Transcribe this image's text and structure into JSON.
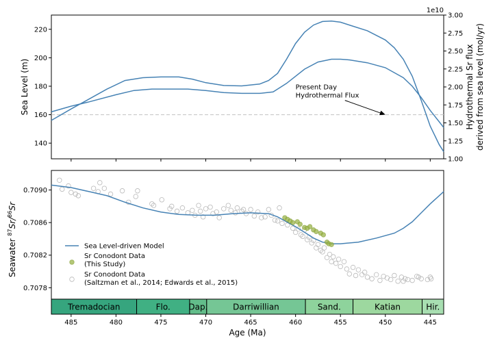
{
  "chart_data": [
    {
      "panel": "top",
      "type": "line",
      "x_axis": {
        "label": "Age (Ma)",
        "range": [
          487.2,
          443.5
        ],
        "reversed": true,
        "ticks": [
          485,
          480,
          475,
          470,
          465,
          460,
          455,
          450,
          445
        ],
        "ticklabels_shown": false
      },
      "y_axis_left": {
        "label": "Sea Level (m)",
        "range": [
          129,
          230
        ],
        "ticks": [
          140,
          160,
          180,
          200,
          220
        ]
      },
      "y_axis_right": {
        "label_line1": "Hydrothermal Sr flux",
        "label_line2": "derived from sea level (mol/yr)",
        "multiplier": "1e10",
        "range": [
          1.0,
          3.0
        ],
        "ticks": [
          1.0,
          1.25,
          1.5,
          1.75,
          2.0,
          2.25,
          2.5,
          2.75,
          3.0
        ],
        "ticklabels": [
          "1.00",
          "1.25",
          "1.50",
          "1.75",
          "2.00",
          "2.25",
          "2.50",
          "2.75",
          "3.00"
        ]
      },
      "reference_line": {
        "y": 160,
        "style": "dashed",
        "color": "#c8c8c8"
      },
      "annotation": {
        "text_line1": "Present Day",
        "text_line2": "Hydrothermal Flux",
        "text_x": 460,
        "text_y": 172,
        "arrow_to_x": 450,
        "arrow_to_y": 160
      },
      "series": [
        {
          "color": "#4682b4",
          "x": [
            487.2,
            485,
            483,
            480,
            478,
            476,
            474,
            472,
            470,
            468,
            466,
            464,
            462.5,
            461,
            459,
            457.5,
            456,
            455,
            454,
            452,
            450,
            448,
            447,
            446,
            445,
            444,
            443.5
          ],
          "y": [
            162,
            166,
            169,
            174,
            177,
            178,
            178,
            178,
            177,
            175.5,
            175,
            175,
            176,
            182,
            192,
            197,
            199,
            199,
            198.5,
            196.5,
            193,
            186,
            180,
            172,
            163,
            155,
            151
          ]
        },
        {
          "color": "#4682b4",
          "x": [
            487.2,
            485,
            483,
            481,
            479,
            477,
            475,
            473,
            471.5,
            470,
            468,
            466,
            464,
            463,
            462,
            461,
            460,
            459,
            458,
            457,
            456,
            455,
            454,
            452,
            450,
            449,
            448,
            447,
            446,
            445,
            444,
            443.5
          ],
          "y": [
            156,
            164,
            171,
            178,
            184,
            186,
            186.5,
            186.5,
            185,
            182.5,
            180.5,
            180.2,
            181.5,
            184,
            189,
            199,
            210,
            218,
            223,
            225.5,
            225.8,
            225,
            223,
            219,
            212.5,
            207,
            199,
            187,
            170,
            152,
            139,
            134
          ]
        }
      ]
    },
    {
      "panel": "bottom",
      "type": "scatter",
      "x_axis": {
        "label": "Age (Ma)",
        "range": [
          487.2,
          443.5
        ],
        "reversed": true,
        "ticks": [
          485,
          480,
          475,
          470,
          465,
          460,
          455,
          450,
          445
        ],
        "ticklabels": [
          "485",
          "480",
          "475",
          "470",
          "465",
          "460",
          "455",
          "450",
          "445"
        ]
      },
      "y_axis": {
        "label_prefix": "Seawater ",
        "label_sup1": "87",
        "label_mid": "Sr/",
        "label_sup2": "86",
        "label_suffix": "Sr",
        "range": [
          0.70766,
          0.70924
        ],
        "ticks": [
          0.7078,
          0.7082,
          0.7086,
          0.709
        ],
        "ticklabels": [
          "0.7078",
          "0.7082",
          "0.7086",
          "0.7090"
        ]
      },
      "legend": {
        "placement": "center-left",
        "entries": [
          {
            "kind": "line",
            "label_line1": "Sea Level-driven Model",
            "label_line2": ""
          },
          {
            "kind": "filled-circle",
            "label_line1": "Sr Conodont Data",
            "label_line2": "(This Study)"
          },
          {
            "kind": "open-circle",
            "label_line1": "Sr Conodont Data",
            "label_line2": "(Saltzman et al., 2014; Edwards et al., 2015)"
          }
        ]
      },
      "series": [
        {
          "name": "Sea Level-driven Model",
          "kind": "line",
          "color": "#4682b4",
          "x": [
            487.2,
            485,
            483,
            481,
            479,
            477,
            475,
            473,
            471,
            469,
            467,
            465,
            463,
            462,
            461,
            460,
            459,
            458,
            457,
            456,
            455,
            453,
            451,
            449,
            448,
            447,
            446,
            445,
            444,
            443.5
          ],
          "y": [
            0.70906,
            0.70903,
            0.70898,
            0.70893,
            0.70885,
            0.70878,
            0.70873,
            0.7087,
            0.70869,
            0.70869,
            0.70871,
            0.70872,
            0.70871,
            0.70867,
            0.70861,
            0.70855,
            0.70848,
            0.70841,
            0.70836,
            0.70834,
            0.70834,
            0.70836,
            0.70841,
            0.70847,
            0.70853,
            0.70861,
            0.70872,
            0.70883,
            0.70893,
            0.70898
          ]
        },
        {
          "name": "Sr Conodont Data (This Study)",
          "kind": "filled",
          "color": "#7d9a2a",
          "x": [
            461.2,
            460.9,
            460.6,
            460.3,
            459.8,
            459.5,
            459.0,
            458.7,
            458.4,
            458.0,
            457.7,
            457.2,
            456.9,
            456.5,
            456.3,
            456.0
          ],
          "y": [
            0.70866,
            0.70864,
            0.70862,
            0.7086,
            0.70861,
            0.70858,
            0.70854,
            0.70853,
            0.70855,
            0.70851,
            0.70849,
            0.70847,
            0.70845,
            0.70836,
            0.70834,
            0.70833
          ]
        },
        {
          "name": "Sr Conodont Data (Saltzman et al., 2014; Edwards et al., 2015)",
          "kind": "open",
          "color": "#b9b9b9",
          "x": [
            486.3,
            486.0,
            485.3,
            485.0,
            484.5,
            484.2,
            482.5,
            482.0,
            481.8,
            481.3,
            480.6,
            479.3,
            478.6,
            477.8,
            477.6,
            476.0,
            475.8,
            474.9,
            474.0,
            473.8,
            473.2,
            472.6,
            472.0,
            471.5,
            471.2,
            470.8,
            470.6,
            470.3,
            470.0,
            469.5,
            469.2,
            468.8,
            468.5,
            468.0,
            467.5,
            467.2,
            466.7,
            466.5,
            466.0,
            465.8,
            465.5,
            465.0,
            464.6,
            464.2,
            463.8,
            463.4,
            463.0,
            462.7,
            462.3,
            462.0,
            461.8,
            461.5,
            460.9,
            460.6,
            460.3,
            460.0,
            459.7,
            459.4,
            459.2,
            459.0,
            458.7,
            458.5,
            458.2,
            458.0,
            457.7,
            457.5,
            457.2,
            457.0,
            456.8,
            456.5,
            456.2,
            456.0,
            455.8,
            455.5,
            455.2,
            455.0,
            454.6,
            454.3,
            454.0,
            453.6,
            453.3,
            453.0,
            452.6,
            452.3,
            452.0,
            451.5,
            451.0,
            450.6,
            450.2,
            449.8,
            449.4,
            449.0,
            448.6,
            448.2,
            447.8,
            447.5,
            446.5,
            446.3,
            446.0,
            445.0,
            444.9,
            445.3,
            447.0,
            448.0
          ],
          "y": [
            0.70912,
            0.70901,
            0.70905,
            0.70897,
            0.70895,
            0.70893,
            0.70902,
            0.70898,
            0.70909,
            0.70902,
            0.70895,
            0.70899,
            0.70885,
            0.70892,
            0.70899,
            0.70883,
            0.70881,
            0.70888,
            0.70877,
            0.7088,
            0.70874,
            0.70878,
            0.70872,
            0.70875,
            0.70869,
            0.70881,
            0.70874,
            0.70867,
            0.70877,
            0.70879,
            0.70871,
            0.70873,
            0.70866,
            0.70877,
            0.70881,
            0.70875,
            0.70872,
            0.70878,
            0.70874,
            0.70876,
            0.70871,
            0.70876,
            0.70868,
            0.70873,
            0.70866,
            0.70867,
            0.70876,
            0.70869,
            0.70863,
            0.70862,
            0.70878,
            0.70859,
            0.70857,
            0.70861,
            0.70853,
            0.70848,
            0.70852,
            0.70845,
            0.70843,
            0.70851,
            0.70839,
            0.70842,
            0.70835,
            0.70838,
            0.70829,
            0.70833,
            0.70826,
            0.70824,
            0.70829,
            0.70817,
            0.70821,
            0.70812,
            0.70818,
            0.7081,
            0.70815,
            0.70806,
            0.70812,
            0.70803,
            0.70797,
            0.70805,
            0.70795,
            0.70802,
            0.70796,
            0.70799,
            0.70793,
            0.70791,
            0.70796,
            0.70789,
            0.70794,
            0.70792,
            0.7079,
            0.70795,
            0.70788,
            0.70793,
            0.70791,
            0.7079,
            0.70794,
            0.70793,
            0.70791,
            0.70793,
            0.70791,
            0.7079,
            0.70789,
            0.70788
          ]
        }
      ]
    }
  ],
  "stages": [
    {
      "label": "Tremadocian",
      "start": 487.2,
      "end": 477.7,
      "color": "#36a57e"
    },
    {
      "label": "Flo.",
      "start": 477.7,
      "end": 471.8,
      "color": "#40b083"
    },
    {
      "label": "Dap.",
      "start": 471.8,
      "end": 469.9,
      "color": "#62bd8a"
    },
    {
      "label": "Darriwillian",
      "start": 469.9,
      "end": 458.9,
      "color": "#75c695"
    },
    {
      "label": "Sand.",
      "start": 458.9,
      "end": 453.6,
      "color": "#8ed39c"
    },
    {
      "label": "Katian",
      "start": 453.6,
      "end": 445.9,
      "color": "#9dd89f"
    },
    {
      "label": "Hir.",
      "start": 445.9,
      "end": 443.5,
      "color": "#a8deb1"
    }
  ]
}
